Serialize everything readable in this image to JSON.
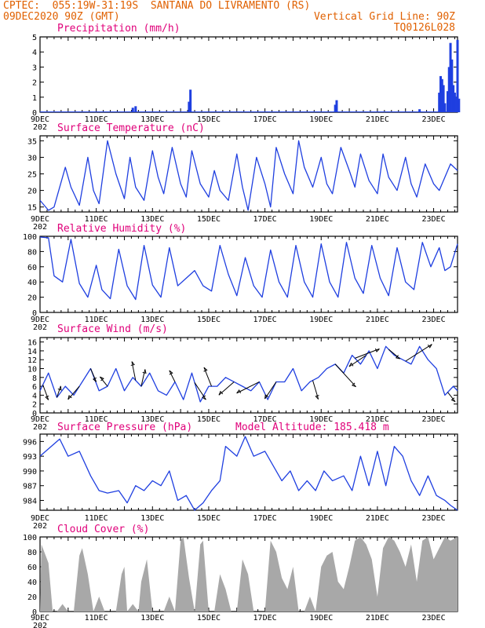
{
  "header": {
    "line1": "CPTEC:  055:19W-31:19S  SANTANA DO LIVRAMENTO (RS)",
    "line2_left": "09DEC2020 90Z (GMT)",
    "line2_right": "Vertical Grid Line: 90Z",
    "line3_right": "TQ0126L028"
  },
  "x_axis": {
    "labels": [
      "9DEC",
      "11DEC",
      "13DEC",
      "15DEC",
      "17DEC",
      "19DEC",
      "21DEC",
      "23DEC"
    ],
    "year_fragment": "202"
  },
  "colors": {
    "line": "#1f3fe0",
    "bar": "#1f3fe0",
    "cloud": "#a8a8a8",
    "title": "#e0007a",
    "header": "#e06000"
  },
  "chart_data": [
    {
      "type": "bar",
      "title": "Precipitation (mm/h)",
      "ylim": [
        0,
        5
      ],
      "yticks": [
        "0",
        "1",
        "2",
        "3",
        "4",
        "5"
      ],
      "x_unit": "days since 09DEC",
      "bars": [
        [
          3.3,
          0.3
        ],
        [
          3.4,
          0.4
        ],
        [
          5.3,
          0.7
        ],
        [
          5.35,
          1.5
        ],
        [
          10.5,
          0.5
        ],
        [
          10.55,
          0.8
        ],
        [
          13.5,
          0.2
        ],
        [
          14.2,
          1.3
        ],
        [
          14.25,
          2.4
        ],
        [
          14.3,
          2.2
        ],
        [
          14.35,
          1.8
        ],
        [
          14.4,
          0.6
        ],
        [
          14.5,
          1.4
        ],
        [
          14.55,
          3.0
        ],
        [
          14.6,
          4.6
        ],
        [
          14.65,
          3.5
        ],
        [
          14.7,
          1.8
        ],
        [
          14.75,
          1.3
        ],
        [
          14.8,
          1.0
        ],
        [
          14.85,
          4.8
        ],
        [
          14.9,
          0.9
        ]
      ]
    },
    {
      "type": "line",
      "title": "Surface Temperature (nC)",
      "ylim": [
        13.5,
        36.5
      ],
      "yticks": [
        "15",
        "20",
        "25",
        "30",
        "35"
      ],
      "x_unit": "days since 09DEC",
      "x": [
        0,
        0.3,
        0.5,
        0.9,
        1.1,
        1.4,
        1.7,
        1.9,
        2.1,
        2.4,
        2.7,
        3.0,
        3.2,
        3.4,
        3.7,
        4.0,
        4.2,
        4.4,
        4.7,
        5.0,
        5.2,
        5.4,
        5.7,
        6.0,
        6.2,
        6.4,
        6.7,
        7.0,
        7.2,
        7.4,
        7.7,
        8.0,
        8.2,
        8.4,
        8.7,
        9.0,
        9.2,
        9.4,
        9.7,
        10.0,
        10.2,
        10.4,
        10.7,
        11.0,
        11.2,
        11.4,
        11.7,
        12.0,
        12.2,
        12.4,
        12.7,
        13.0,
        13.2,
        13.4,
        13.7,
        14.0,
        14.2,
        14.4,
        14.6,
        14.85
      ],
      "y": [
        17,
        14,
        15,
        27,
        21,
        15.5,
        30,
        20,
        16,
        35,
        25,
        17.5,
        30,
        21,
        17,
        32,
        24,
        19,
        33,
        22,
        18,
        32,
        22,
        18,
        26,
        20,
        17,
        31,
        21,
        14,
        30,
        22,
        15,
        33,
        25,
        19,
        35,
        27,
        21,
        30,
        22,
        19,
        33,
        26,
        21,
        31,
        23,
        19,
        31,
        24,
        20,
        30,
        22,
        18,
        28,
        22,
        20,
        24,
        28,
        26
      ]
    },
    {
      "type": "line",
      "title": "Relative Humidity (%)",
      "ylim": [
        0,
        100
      ],
      "yticks": [
        "0",
        "20",
        "40",
        "60",
        "80",
        "100"
      ],
      "x_unit": "days since 09DEC",
      "x": [
        0,
        0.3,
        0.5,
        0.8,
        1.1,
        1.4,
        1.7,
        2.0,
        2.2,
        2.5,
        2.8,
        3.1,
        3.4,
        3.7,
        4.0,
        4.3,
        4.6,
        4.9,
        5.2,
        5.5,
        5.8,
        6.1,
        6.4,
        6.7,
        7.0,
        7.3,
        7.6,
        7.9,
        8.2,
        8.5,
        8.8,
        9.1,
        9.4,
        9.7,
        10.0,
        10.3,
        10.6,
        10.9,
        11.2,
        11.5,
        11.8,
        12.1,
        12.4,
        12.7,
        13.0,
        13.3,
        13.6,
        13.9,
        14.2,
        14.4,
        14.6,
        14.85
      ],
      "y": [
        99,
        98,
        48,
        40,
        96,
        38,
        20,
        62,
        30,
        18,
        83,
        35,
        17,
        88,
        36,
        20,
        85,
        35,
        45,
        55,
        35,
        28,
        88,
        50,
        22,
        72,
        35,
        20,
        82,
        40,
        20,
        88,
        40,
        20,
        90,
        40,
        20,
        92,
        45,
        25,
        88,
        45,
        22,
        85,
        40,
        30,
        92,
        60,
        85,
        55,
        60,
        90
      ]
    },
    {
      "type": "line",
      "title": "Surface Wind (m/s)",
      "ylim": [
        0,
        17
      ],
      "yticks": [
        "0",
        "2",
        "4",
        "6",
        "8",
        "10",
        "12",
        "14",
        "16"
      ],
      "x_unit": "days since 09DEC",
      "x": [
        0,
        0.3,
        0.6,
        0.9,
        1.2,
        1.5,
        1.8,
        2.1,
        2.4,
        2.7,
        3.0,
        3.3,
        3.6,
        3.9,
        4.2,
        4.5,
        4.8,
        5.1,
        5.4,
        5.7,
        6.0,
        6.3,
        6.6,
        6.9,
        7.2,
        7.5,
        7.8,
        8.1,
        8.4,
        8.7,
        9.0,
        9.3,
        9.6,
        9.9,
        10.2,
        10.5,
        10.8,
        11.1,
        11.4,
        11.7,
        12.0,
        12.3,
        12.6,
        12.9,
        13.2,
        13.5,
        13.8,
        14.1,
        14.4,
        14.7,
        14.85
      ],
      "y": [
        5,
        9,
        3.5,
        6,
        4,
        7,
        10,
        5,
        6,
        10,
        5,
        8,
        6,
        9,
        5,
        4,
        7,
        3,
        9,
        2.5,
        6,
        6,
        8,
        7,
        6,
        5,
        7,
        3,
        7,
        7,
        10,
        5,
        7,
        8,
        10,
        11,
        9,
        13,
        11,
        14,
        10,
        15,
        13,
        12,
        11,
        15,
        12,
        10,
        4,
        6,
        5
      ],
      "arrows": [
        [
          0.1,
          3,
          -8
        ],
        [
          0.6,
          2,
          6
        ],
        [
          1.4,
          -6,
          -7
        ],
        [
          1.8,
          3,
          -7
        ],
        [
          2.4,
          -4,
          5
        ],
        [
          3.4,
          -2,
          10
        ],
        [
          3.6,
          2,
          9
        ],
        [
          4.8,
          -3,
          6
        ],
        [
          5.5,
          6,
          -9
        ],
        [
          6.1,
          -4,
          10
        ],
        [
          6.9,
          -8,
          -7
        ],
        [
          7.8,
          -12,
          -6
        ],
        [
          8.4,
          -6,
          -9
        ],
        [
          9.7,
          3,
          -10
        ],
        [
          10.5,
          11,
          -12
        ],
        [
          11.2,
          13,
          5
        ],
        [
          11.6,
          -9,
          -6
        ],
        [
          12.4,
          6,
          -5
        ],
        [
          13.0,
          14,
          9
        ],
        [
          14.5,
          4,
          -5
        ]
      ]
    },
    {
      "type": "line",
      "title": "Surface Pressure (hPa)",
      "subtitle": "Model Altitude: 185.418 m",
      "ylim": [
        982,
        997.5
      ],
      "yticks": [
        "984",
        "987",
        "990",
        "993",
        "996"
      ],
      "x_unit": "days since 09DEC",
      "x": [
        0,
        0.4,
        0.7,
        1.0,
        1.4,
        1.8,
        2.1,
        2.4,
        2.8,
        3.1,
        3.4,
        3.7,
        4.0,
        4.3,
        4.6,
        4.9,
        5.2,
        5.5,
        5.8,
        6.1,
        6.4,
        6.6,
        7.0,
        7.3,
        7.6,
        8.0,
        8.3,
        8.6,
        8.9,
        9.2,
        9.5,
        9.8,
        10.1,
        10.4,
        10.8,
        11.1,
        11.4,
        11.7,
        12.0,
        12.3,
        12.6,
        12.9,
        13.2,
        13.5,
        13.8,
        14.1,
        14.4,
        14.6,
        14.85
      ],
      "y": [
        993,
        995,
        996.5,
        993,
        994,
        989,
        986,
        985.5,
        986,
        983.5,
        987,
        986,
        988,
        987,
        990,
        984,
        985,
        982,
        983.5,
        986,
        988,
        995,
        993,
        997,
        993,
        994,
        991,
        988,
        990,
        986,
        988,
        986,
        990,
        988,
        989,
        986,
        993,
        987,
        994,
        987,
        995,
        993,
        988,
        985,
        989,
        985,
        984,
        983,
        982
      ]
    },
    {
      "type": "area",
      "title": "Cloud Cover (%)",
      "ylim": [
        0,
        100
      ],
      "yticks": [
        "0",
        "20",
        "40",
        "60",
        "80",
        "100"
      ],
      "x_unit": "days since 09DEC",
      "x": [
        0,
        0.05,
        0.15,
        0.3,
        0.45,
        0.6,
        0.8,
        1.0,
        1.2,
        1.4,
        1.5,
        1.7,
        1.9,
        2.1,
        2.3,
        2.5,
        2.7,
        2.9,
        3.0,
        3.1,
        3.3,
        3.5,
        3.6,
        3.8,
        4.0,
        4.2,
        4.4,
        4.6,
        4.8,
        5.0,
        5.1,
        5.3,
        5.5,
        5.7,
        5.8,
        6.0,
        6.2,
        6.4,
        6.6,
        6.8,
        7.0,
        7.2,
        7.4,
        7.6,
        7.8,
        8.0,
        8.2,
        8.4,
        8.6,
        8.8,
        9.0,
        9.2,
        9.4,
        9.6,
        9.8,
        10.0,
        10.2,
        10.4,
        10.6,
        10.8,
        11.0,
        11.2,
        11.4,
        11.6,
        11.8,
        12.0,
        12.2,
        12.4,
        12.6,
        12.8,
        13.0,
        13.2,
        13.4,
        13.6,
        13.8,
        14.0,
        14.2,
        14.4,
        14.6,
        14.85
      ],
      "y": [
        0,
        90,
        80,
        65,
        0,
        0,
        10,
        0,
        0,
        75,
        85,
        50,
        0,
        20,
        0,
        0,
        0,
        50,
        60,
        0,
        10,
        0,
        40,
        70,
        0,
        0,
        0,
        20,
        0,
        95,
        100,
        45,
        0,
        90,
        95,
        0,
        0,
        50,
        30,
        0,
        0,
        70,
        50,
        0,
        0,
        0,
        95,
        80,
        45,
        30,
        60,
        0,
        0,
        20,
        0,
        60,
        75,
        80,
        40,
        30,
        60,
        95,
        100,
        90,
        70,
        20,
        85,
        100,
        95,
        80,
        60,
        90,
        40,
        95,
        100,
        70,
        85,
        100,
        95,
        100
      ]
    }
  ]
}
